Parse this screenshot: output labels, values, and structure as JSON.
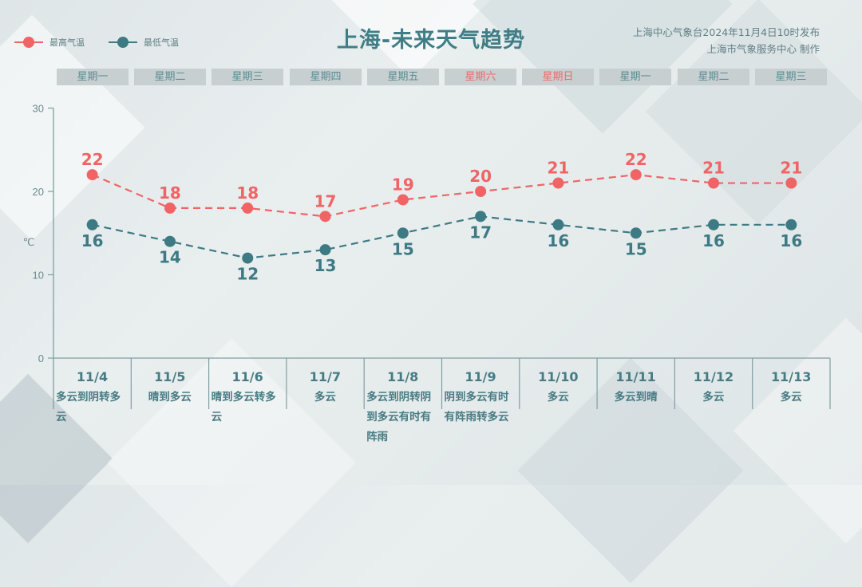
{
  "header": {
    "title": "上海-未来天气趋势",
    "issuer_line1": "上海中心气象台2024年11月4日10时发布",
    "issuer_line2": "上海市气象服务中心 制作"
  },
  "legend": [
    {
      "label": "最高气温",
      "color": "#f06466"
    },
    {
      "label": "最低气温",
      "color": "#3e7a84"
    }
  ],
  "weekdays": [
    {
      "label": "星期一",
      "weekend": false
    },
    {
      "label": "星期二",
      "weekend": false
    },
    {
      "label": "星期三",
      "weekend": false
    },
    {
      "label": "星期四",
      "weekend": false
    },
    {
      "label": "星期五",
      "weekend": false
    },
    {
      "label": "星期六",
      "weekend": true
    },
    {
      "label": "星期日",
      "weekend": true
    },
    {
      "label": "星期一",
      "weekend": false
    },
    {
      "label": "星期二",
      "weekend": false
    },
    {
      "label": "星期三",
      "weekend": false
    }
  ],
  "days": [
    {
      "date": "11/4",
      "weather": "多云到阴转多云"
    },
    {
      "date": "11/5",
      "weather": "晴到多云"
    },
    {
      "date": "11/6",
      "weather": "晴到多云转多云"
    },
    {
      "date": "11/7",
      "weather": "多云"
    },
    {
      "date": "11/8",
      "weather": "多云到阴转阴到多云有时有阵雨"
    },
    {
      "date": "11/9",
      "weather": "阴到多云有时有阵雨转多云"
    },
    {
      "date": "11/10",
      "weather": "多云"
    },
    {
      "date": "11/11",
      "weather": "多云到晴"
    },
    {
      "date": "11/12",
      "weather": "多云"
    },
    {
      "date": "11/13",
      "weather": "多云"
    }
  ],
  "chart_data": {
    "type": "line",
    "title": "上海-未来天气趋势",
    "xlabel": "",
    "ylabel": "℃",
    "ylim": [
      0,
      30
    ],
    "yticks": [
      0,
      10,
      20,
      30
    ],
    "grid": false,
    "legend_position": "top-left",
    "categories": [
      "11/4",
      "11/5",
      "11/6",
      "11/7",
      "11/8",
      "11/9",
      "11/10",
      "11/11",
      "11/12",
      "11/13"
    ],
    "series": [
      {
        "name": "最高气温",
        "color": "#f06466",
        "line_style": "dashed",
        "values": [
          22,
          18,
          18,
          17,
          19,
          20,
          21,
          22,
          21,
          21
        ]
      },
      {
        "name": "最低气温",
        "color": "#3e7a84",
        "line_style": "dashed",
        "values": [
          16,
          14,
          12,
          13,
          15,
          17,
          16,
          15,
          16,
          16
        ]
      }
    ]
  }
}
